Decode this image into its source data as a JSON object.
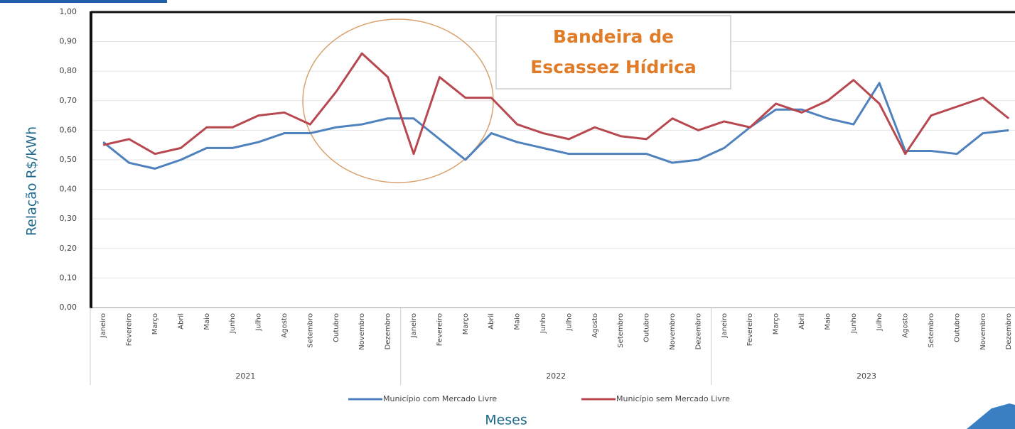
{
  "chart_data": {
    "type": "line",
    "y_label": "Relação R$/kWh",
    "x_label": "Meses",
    "annotation": [
      "Bandeira de",
      "Escassez Hídrica"
    ],
    "years": [
      "2021",
      "2022",
      "2023"
    ],
    "categories": [
      "Janeiro",
      "Fevereiro",
      "Março",
      "Abril",
      "Maio",
      "Junho",
      "Julho",
      "Agosto",
      "Setembro",
      "Outubro",
      "Novembro",
      "Dezembro",
      "Janeiro",
      "Fevereiro",
      "Março",
      "Abril",
      "Maio",
      "Junho",
      "Julho",
      "Agosto",
      "Setembro",
      "Outubro",
      "Novembro",
      "Dezembro",
      "Janeiro",
      "Fevereiro",
      "Março",
      "Abril",
      "Maio",
      "Junho",
      "Julho",
      "Agosto",
      "Setembro",
      "Outubro",
      "Novembro",
      "Dezembro"
    ],
    "series": [
      {
        "name": "Município com Mercado Livre",
        "color": "#4f81bd",
        "values": [
          0.56,
          0.49,
          0.47,
          0.5,
          0.54,
          0.54,
          0.56,
          0.59,
          0.59,
          0.61,
          0.62,
          0.64,
          0.64,
          0.57,
          0.5,
          0.59,
          0.56,
          0.54,
          0.52,
          0.52,
          0.52,
          0.52,
          0.49,
          0.5,
          0.54,
          0.61,
          0.67,
          0.67,
          0.64,
          0.62,
          0.76,
          0.53,
          0.53,
          0.52,
          0.59,
          0.6
        ]
      },
      {
        "name": "Município sem Mercado Livre",
        "color": "#b8484f",
        "values": [
          0.55,
          0.57,
          0.52,
          0.54,
          0.61,
          0.61,
          0.65,
          0.66,
          0.62,
          0.73,
          0.86,
          0.78,
          0.52,
          0.78,
          0.71,
          0.71,
          0.62,
          0.59,
          0.57,
          0.61,
          0.58,
          0.57,
          0.64,
          0.6,
          0.63,
          0.61,
          0.69,
          0.66,
          0.7,
          0.77,
          0.69,
          0.52,
          0.65,
          0.68,
          0.71,
          0.64
        ]
      }
    ],
    "ylim": [
      0,
      1
    ],
    "yticks": [
      {
        "value": 0,
        "label": "0,00"
      },
      {
        "value": 0.1,
        "label": "0,10"
      },
      {
        "value": 0.2,
        "label": "0,20"
      },
      {
        "value": 0.3,
        "label": "0,30"
      },
      {
        "value": 0.4,
        "label": "0,40"
      },
      {
        "value": 0.5,
        "label": "0,50"
      },
      {
        "value": 0.6,
        "label": "0,60"
      },
      {
        "value": 0.7,
        "label": "0,70"
      },
      {
        "value": 0.8,
        "label": "0,80"
      },
      {
        "value": 0.9,
        "label": "0,90"
      },
      {
        "value": 1,
        "label": "1,00"
      }
    ],
    "grid": true
  }
}
